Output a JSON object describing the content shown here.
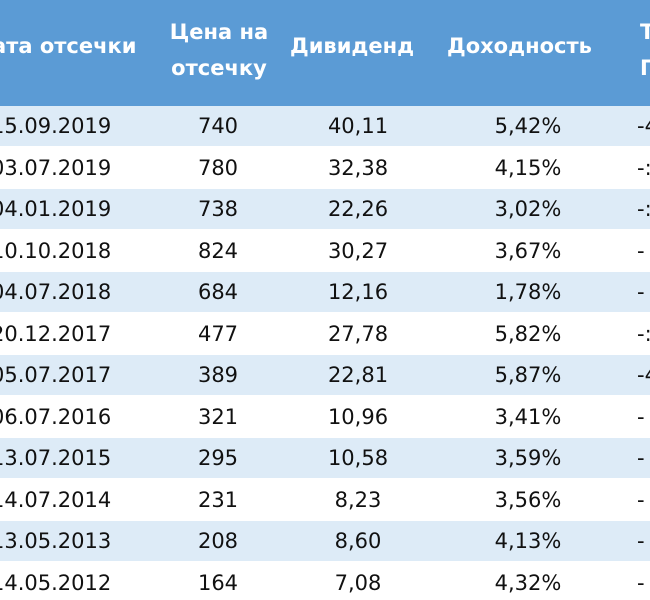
{
  "table": {
    "headers": {
      "date": "ата отсечки",
      "price_line1": "Цена на",
      "price_line2": "отсечку",
      "dividend": "Дивиденд",
      "yield": "Доходность",
      "cut_line1": "Т",
      "cut_line2": "Г"
    },
    "rows": [
      {
        "date": "15.09.2019",
        "price": "740",
        "dividend": "40,11",
        "yield": "5,42%",
        "cut": "-4"
      },
      {
        "date": "03.07.2019",
        "price": "780",
        "dividend": "32,38",
        "yield": "4,15%",
        "cut": "-:"
      },
      {
        "date": "04.01.2019",
        "price": "738",
        "dividend": "22,26",
        "yield": "3,02%",
        "cut": "-:"
      },
      {
        "date": "10.10.2018",
        "price": "824",
        "dividend": "30,27",
        "yield": "3,67%",
        "cut": "-"
      },
      {
        "date": "04.07.2018",
        "price": "684",
        "dividend": "12,16",
        "yield": "1,78%",
        "cut": "-"
      },
      {
        "date": "20.12.2017",
        "price": "477",
        "dividend": "27,78",
        "yield": "5,82%",
        "cut": "-:"
      },
      {
        "date": "05.07.2017",
        "price": "389",
        "dividend": "22,81",
        "yield": "5,87%",
        "cut": "-4"
      },
      {
        "date": "06.07.2016",
        "price": "321",
        "dividend": "10,96",
        "yield": "3,41%",
        "cut": "-"
      },
      {
        "date": "13.07.2015",
        "price": "295",
        "dividend": "10,58",
        "yield": "3,59%",
        "cut": "-"
      },
      {
        "date": "14.07.2014",
        "price": "231",
        "dividend": "8,23",
        "yield": "3,56%",
        "cut": "-"
      },
      {
        "date": "13.05.2013",
        "price": "208",
        "dividend": "8,60",
        "yield": "4,13%",
        "cut": "-"
      },
      {
        "date": "14.05.2012",
        "price": "164",
        "dividend": "7,08",
        "yield": "4,32%",
        "cut": "-"
      }
    ]
  },
  "colors": {
    "header_bg": "#5b9bd5",
    "band_bg": "#ddebf7"
  }
}
